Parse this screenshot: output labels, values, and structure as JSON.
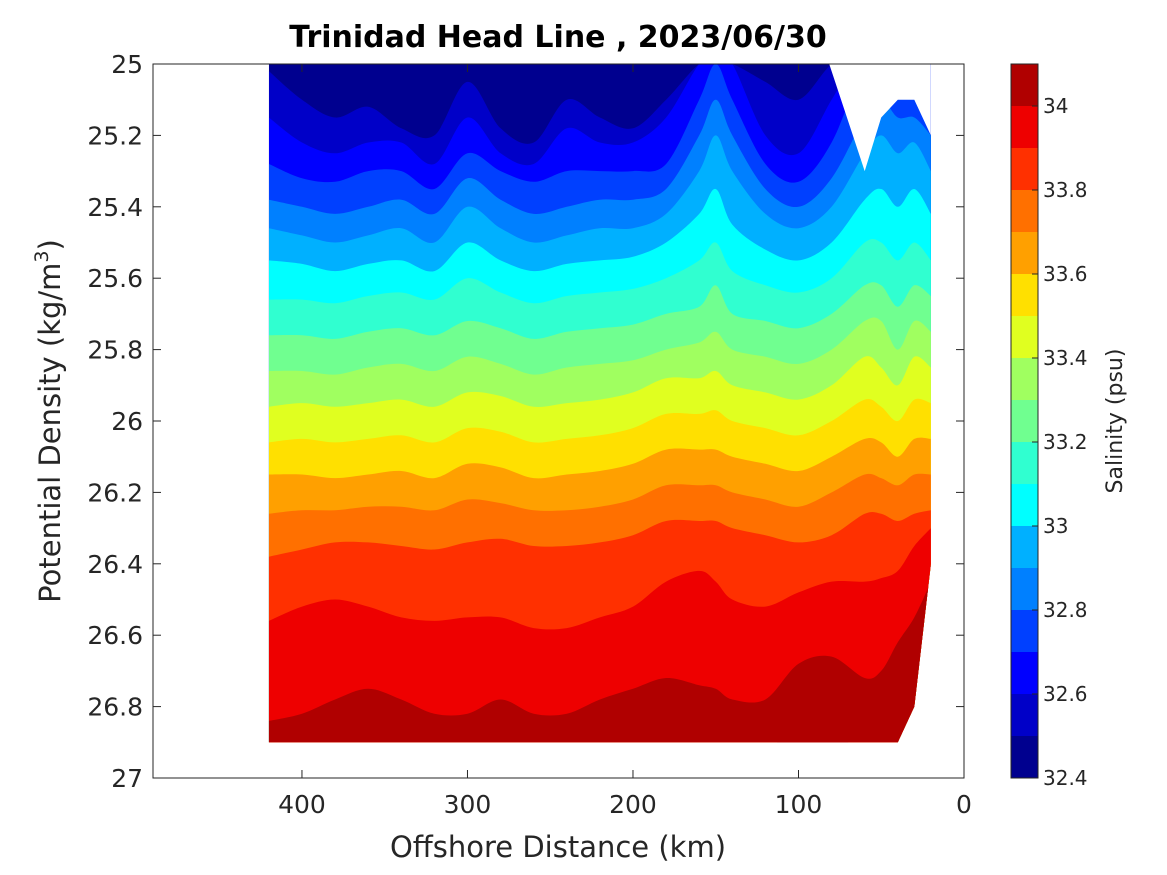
{
  "chart_data": {
    "type": "heatmap",
    "subtype": "filled-contour",
    "title": "Trinidad Head Line , 2023/06/30",
    "xlabel": "Offshore Distance (km)",
    "ylabel_main": "Potential Density (kg/m",
    "ylabel_sup": "3",
    "ylabel_close": ")",
    "x_axis": {
      "range": [
        490,
        0
      ],
      "reversed": true,
      "ticks": [
        400,
        300,
        200,
        100,
        0
      ]
    },
    "y_axis": {
      "range": [
        25,
        27
      ],
      "reversed": true,
      "ticks": [
        25,
        25.2,
        25.4,
        25.6,
        25.8,
        26,
        26.2,
        26.4,
        26.6,
        26.8,
        27
      ],
      "tick_labels": [
        "25",
        "25.2",
        "25.4",
        "25.6",
        "25.8",
        "26",
        "26.2",
        "26.4",
        "26.6",
        "26.8",
        "27"
      ]
    },
    "colorbar": {
      "label": "Salinity (psu)",
      "range": [
        32.4,
        34.1
      ],
      "levels": [
        32.4,
        32.5,
        32.6,
        32.7,
        32.8,
        32.9,
        33.0,
        33.1,
        33.2,
        33.3,
        33.4,
        33.5,
        33.6,
        33.7,
        33.8,
        33.9,
        34.0,
        34.1
      ],
      "tick_values": [
        32.4,
        32.6,
        32.8,
        33.0,
        33.2,
        33.4,
        33.6,
        33.8,
        34.0
      ],
      "tick_labels": [
        "32.4",
        "32.6",
        "32.8",
        "33",
        "33.2",
        "33.4",
        "33.6",
        "33.8",
        "34"
      ],
      "colors": [
        "#00008f",
        "#0000c8",
        "#0000ff",
        "#0040ff",
        "#0080ff",
        "#00b0ff",
        "#00ffff",
        "#30ffd0",
        "#70ff90",
        "#a0ff60",
        "#e0ff20",
        "#ffe000",
        "#ffa000",
        "#ff7000",
        "#ff3000",
        "#ee0000",
        "#b00000"
      ]
    },
    "stations_km": [
      420,
      400,
      380,
      360,
      340,
      320,
      300,
      280,
      260,
      240,
      220,
      200,
      180,
      160,
      150,
      140,
      120,
      100,
      80,
      60,
      50,
      40,
      30,
      20
    ],
    "bottom_density": [
      26.9,
      26.9,
      26.9,
      26.9,
      26.9,
      26.9,
      26.9,
      26.9,
      26.9,
      26.9,
      26.9,
      26.9,
      26.9,
      26.9,
      26.9,
      26.9,
      26.9,
      26.9,
      26.9,
      26.9,
      26.9,
      26.9,
      26.8,
      26.4
    ],
    "isohalines": [
      {
        "s": 32.5,
        "y": [
          25.02,
          25.1,
          25.15,
          25.12,
          25.18,
          25.2,
          25.05,
          25.18,
          25.22,
          25.1,
          25.15,
          25.18,
          25.1,
          25.0,
          25.0,
          25.0,
          25.05,
          25.1,
          25.0,
          24.95,
          24.95,
          24.95,
          24.95,
          24.95
        ]
      },
      {
        "s": 32.6,
        "y": [
          25.15,
          25.22,
          25.25,
          25.22,
          25.22,
          25.28,
          25.15,
          25.25,
          25.28,
          25.18,
          25.22,
          25.22,
          25.15,
          25.0,
          24.98,
          25.0,
          25.2,
          25.25,
          25.1,
          24.95,
          24.95,
          24.95,
          24.95,
          24.95
        ]
      },
      {
        "s": 32.7,
        "y": [
          25.28,
          25.32,
          25.33,
          25.3,
          25.3,
          25.35,
          25.25,
          25.3,
          25.33,
          25.3,
          25.3,
          25.3,
          25.28,
          25.1,
          25.0,
          25.1,
          25.28,
          25.33,
          25.22,
          25.0,
          25.0,
          25.0,
          25.0,
          24.95
        ]
      },
      {
        "s": 32.8,
        "y": [
          25.38,
          25.4,
          25.42,
          25.4,
          25.38,
          25.42,
          25.32,
          25.38,
          25.42,
          25.4,
          25.38,
          25.38,
          25.35,
          25.2,
          25.1,
          25.2,
          25.35,
          25.4,
          25.32,
          25.15,
          25.1,
          25.15,
          25.15,
          25.2
        ]
      },
      {
        "s": 32.9,
        "y": [
          25.46,
          25.48,
          25.5,
          25.48,
          25.46,
          25.5,
          25.4,
          25.46,
          25.5,
          25.48,
          25.46,
          25.46,
          25.42,
          25.3,
          25.2,
          25.3,
          25.42,
          25.46,
          25.4,
          25.25,
          25.2,
          25.25,
          25.22,
          25.3
        ]
      },
      {
        "s": 33.0,
        "y": [
          25.55,
          25.56,
          25.58,
          25.56,
          25.55,
          25.58,
          25.5,
          25.55,
          25.58,
          25.56,
          25.55,
          25.54,
          25.5,
          25.42,
          25.35,
          25.45,
          25.52,
          25.55,
          25.5,
          25.38,
          25.35,
          25.4,
          25.35,
          25.42
        ]
      },
      {
        "s": 33.1,
        "y": [
          25.66,
          25.66,
          25.67,
          25.65,
          25.64,
          25.66,
          25.6,
          25.64,
          25.67,
          25.65,
          25.64,
          25.63,
          25.6,
          25.55,
          25.5,
          25.58,
          25.62,
          25.64,
          25.6,
          25.5,
          25.5,
          25.55,
          25.5,
          25.55
        ]
      },
      {
        "s": 33.2,
        "y": [
          25.76,
          25.76,
          25.77,
          25.75,
          25.74,
          25.76,
          25.72,
          25.74,
          25.77,
          25.75,
          25.74,
          25.73,
          25.7,
          25.68,
          25.62,
          25.7,
          25.72,
          25.74,
          25.7,
          25.62,
          25.62,
          25.68,
          25.62,
          25.65
        ]
      },
      {
        "s": 33.3,
        "y": [
          25.86,
          25.86,
          25.87,
          25.85,
          25.84,
          25.86,
          25.82,
          25.84,
          25.87,
          25.85,
          25.84,
          25.83,
          25.8,
          25.78,
          25.75,
          25.8,
          25.82,
          25.84,
          25.8,
          25.72,
          25.72,
          25.8,
          25.72,
          25.75
        ]
      },
      {
        "s": 33.4,
        "y": [
          25.96,
          25.95,
          25.96,
          25.95,
          25.94,
          25.96,
          25.92,
          25.93,
          25.96,
          25.95,
          25.94,
          25.92,
          25.88,
          25.88,
          25.86,
          25.9,
          25.92,
          25.94,
          25.9,
          25.82,
          25.85,
          25.9,
          25.82,
          25.85
        ]
      },
      {
        "s": 33.5,
        "y": [
          26.06,
          26.05,
          26.06,
          26.05,
          26.04,
          26.06,
          26.02,
          26.03,
          26.06,
          26.05,
          26.04,
          26.02,
          25.98,
          25.98,
          25.97,
          26.0,
          26.02,
          26.04,
          26.0,
          25.94,
          25.96,
          26.0,
          25.94,
          25.95
        ]
      },
      {
        "s": 33.6,
        "y": [
          26.15,
          26.15,
          26.16,
          26.15,
          26.14,
          26.16,
          26.12,
          26.13,
          26.16,
          26.15,
          26.14,
          26.12,
          26.08,
          26.08,
          26.08,
          26.1,
          26.12,
          26.14,
          26.1,
          26.05,
          26.06,
          26.1,
          26.05,
          26.05
        ]
      },
      {
        "s": 33.7,
        "y": [
          26.26,
          26.25,
          26.25,
          26.24,
          26.24,
          26.25,
          26.22,
          26.23,
          26.25,
          26.25,
          26.24,
          26.22,
          26.18,
          26.18,
          26.18,
          26.2,
          26.22,
          26.24,
          26.2,
          26.15,
          26.16,
          26.18,
          26.15,
          26.15
        ]
      },
      {
        "s": 33.8,
        "y": [
          26.38,
          26.36,
          26.34,
          26.34,
          26.35,
          26.36,
          26.34,
          26.33,
          26.35,
          26.35,
          26.34,
          26.32,
          26.28,
          26.28,
          26.28,
          26.3,
          26.32,
          26.34,
          26.32,
          26.26,
          26.26,
          26.28,
          26.26,
          26.25
        ]
      },
      {
        "s": 33.9,
        "y": [
          26.56,
          26.52,
          26.5,
          26.52,
          26.55,
          26.56,
          26.55,
          26.55,
          26.58,
          26.58,
          26.55,
          26.52,
          26.45,
          26.42,
          26.45,
          26.5,
          26.52,
          26.48,
          26.45,
          26.45,
          26.44,
          26.42,
          26.35,
          26.3
        ]
      },
      {
        "s": 34.0,
        "y": [
          26.84,
          26.82,
          26.78,
          26.75,
          26.78,
          26.82,
          26.82,
          26.78,
          26.82,
          26.82,
          26.78,
          26.75,
          26.72,
          26.74,
          26.75,
          26.78,
          26.78,
          26.68,
          26.66,
          26.72,
          26.7,
          26.62,
          26.55,
          26.45
        ]
      },
      {
        "s": 34.1,
        "y": [
          26.92,
          26.92,
          26.92,
          26.92,
          26.92,
          26.92,
          26.92,
          26.92,
          26.92,
          26.92,
          26.92,
          26.92,
          26.92,
          26.92,
          26.92,
          26.92,
          26.92,
          26.86,
          26.88,
          26.92,
          26.92,
          26.92,
          26.92,
          26.92
        ]
      }
    ]
  }
}
